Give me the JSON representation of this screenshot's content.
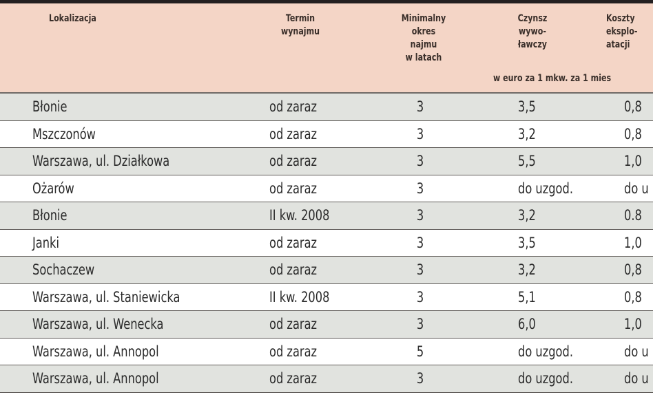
{
  "table": {
    "headers": {
      "location": "Lokalizacja",
      "term": "Termin\nwynajmu",
      "min_period": "Minimalny\nokres\nnajmu\nw latach",
      "rent": "Czynsz\nwywo-\nławczy",
      "costs": "Koszty\neksplo-\natacji",
      "unit_note": "w euro za 1 mkw. za 1 mies"
    },
    "rows": [
      {
        "location": "Błonie",
        "term": "od zaraz",
        "min_period": "3",
        "rent": "3,5",
        "costs": "0,8"
      },
      {
        "location": "Mszczonów",
        "term": "od zaraz",
        "min_period": "3",
        "rent": "3,2",
        "costs": "0,8"
      },
      {
        "location": "Warszawa, ul. Działkowa",
        "term": "od zaraz",
        "min_period": "3",
        "rent": "5,5",
        "costs": "1,0"
      },
      {
        "location": "Ożarów",
        "term": "od zaraz",
        "min_period": "3",
        "rent": "do uzgod.",
        "costs": "do u"
      },
      {
        "location": "Błonie",
        "term": "II kw. 2008",
        "min_period": "3",
        "rent": "3,2",
        "costs": "0.8"
      },
      {
        "location": "Janki",
        "term": "od zaraz",
        "min_period": "3",
        "rent": "3,5",
        "costs": "1,0"
      },
      {
        "location": "Sochaczew",
        "term": "od zaraz",
        "min_period": "3",
        "rent": "3,2",
        "costs": "0,8"
      },
      {
        "location": "Warszawa, ul. Staniewicka",
        "term": "II kw. 2008",
        "min_period": "3",
        "rent": "5,1",
        "costs": "0,8"
      },
      {
        "location": "Warszawa, ul. Wenecka",
        "term": "od zaraz",
        "min_period": "3",
        "rent": "6,0",
        "costs": "1,0"
      },
      {
        "location": "Warszawa, ul. Annopol",
        "term": "od zaraz",
        "min_period": "5",
        "rent": "do uzgod.",
        "costs": "do u"
      },
      {
        "location": "Warszawa, ul. Annopol",
        "term": "od zaraz",
        "min_period": "3",
        "rent": "do uzgod.",
        "costs": "do u"
      }
    ]
  },
  "colors": {
    "header_bg": "#f4d5c6",
    "row_shaded": "#e1e3df",
    "row_white": "#ffffff",
    "rule": "#231f20"
  }
}
